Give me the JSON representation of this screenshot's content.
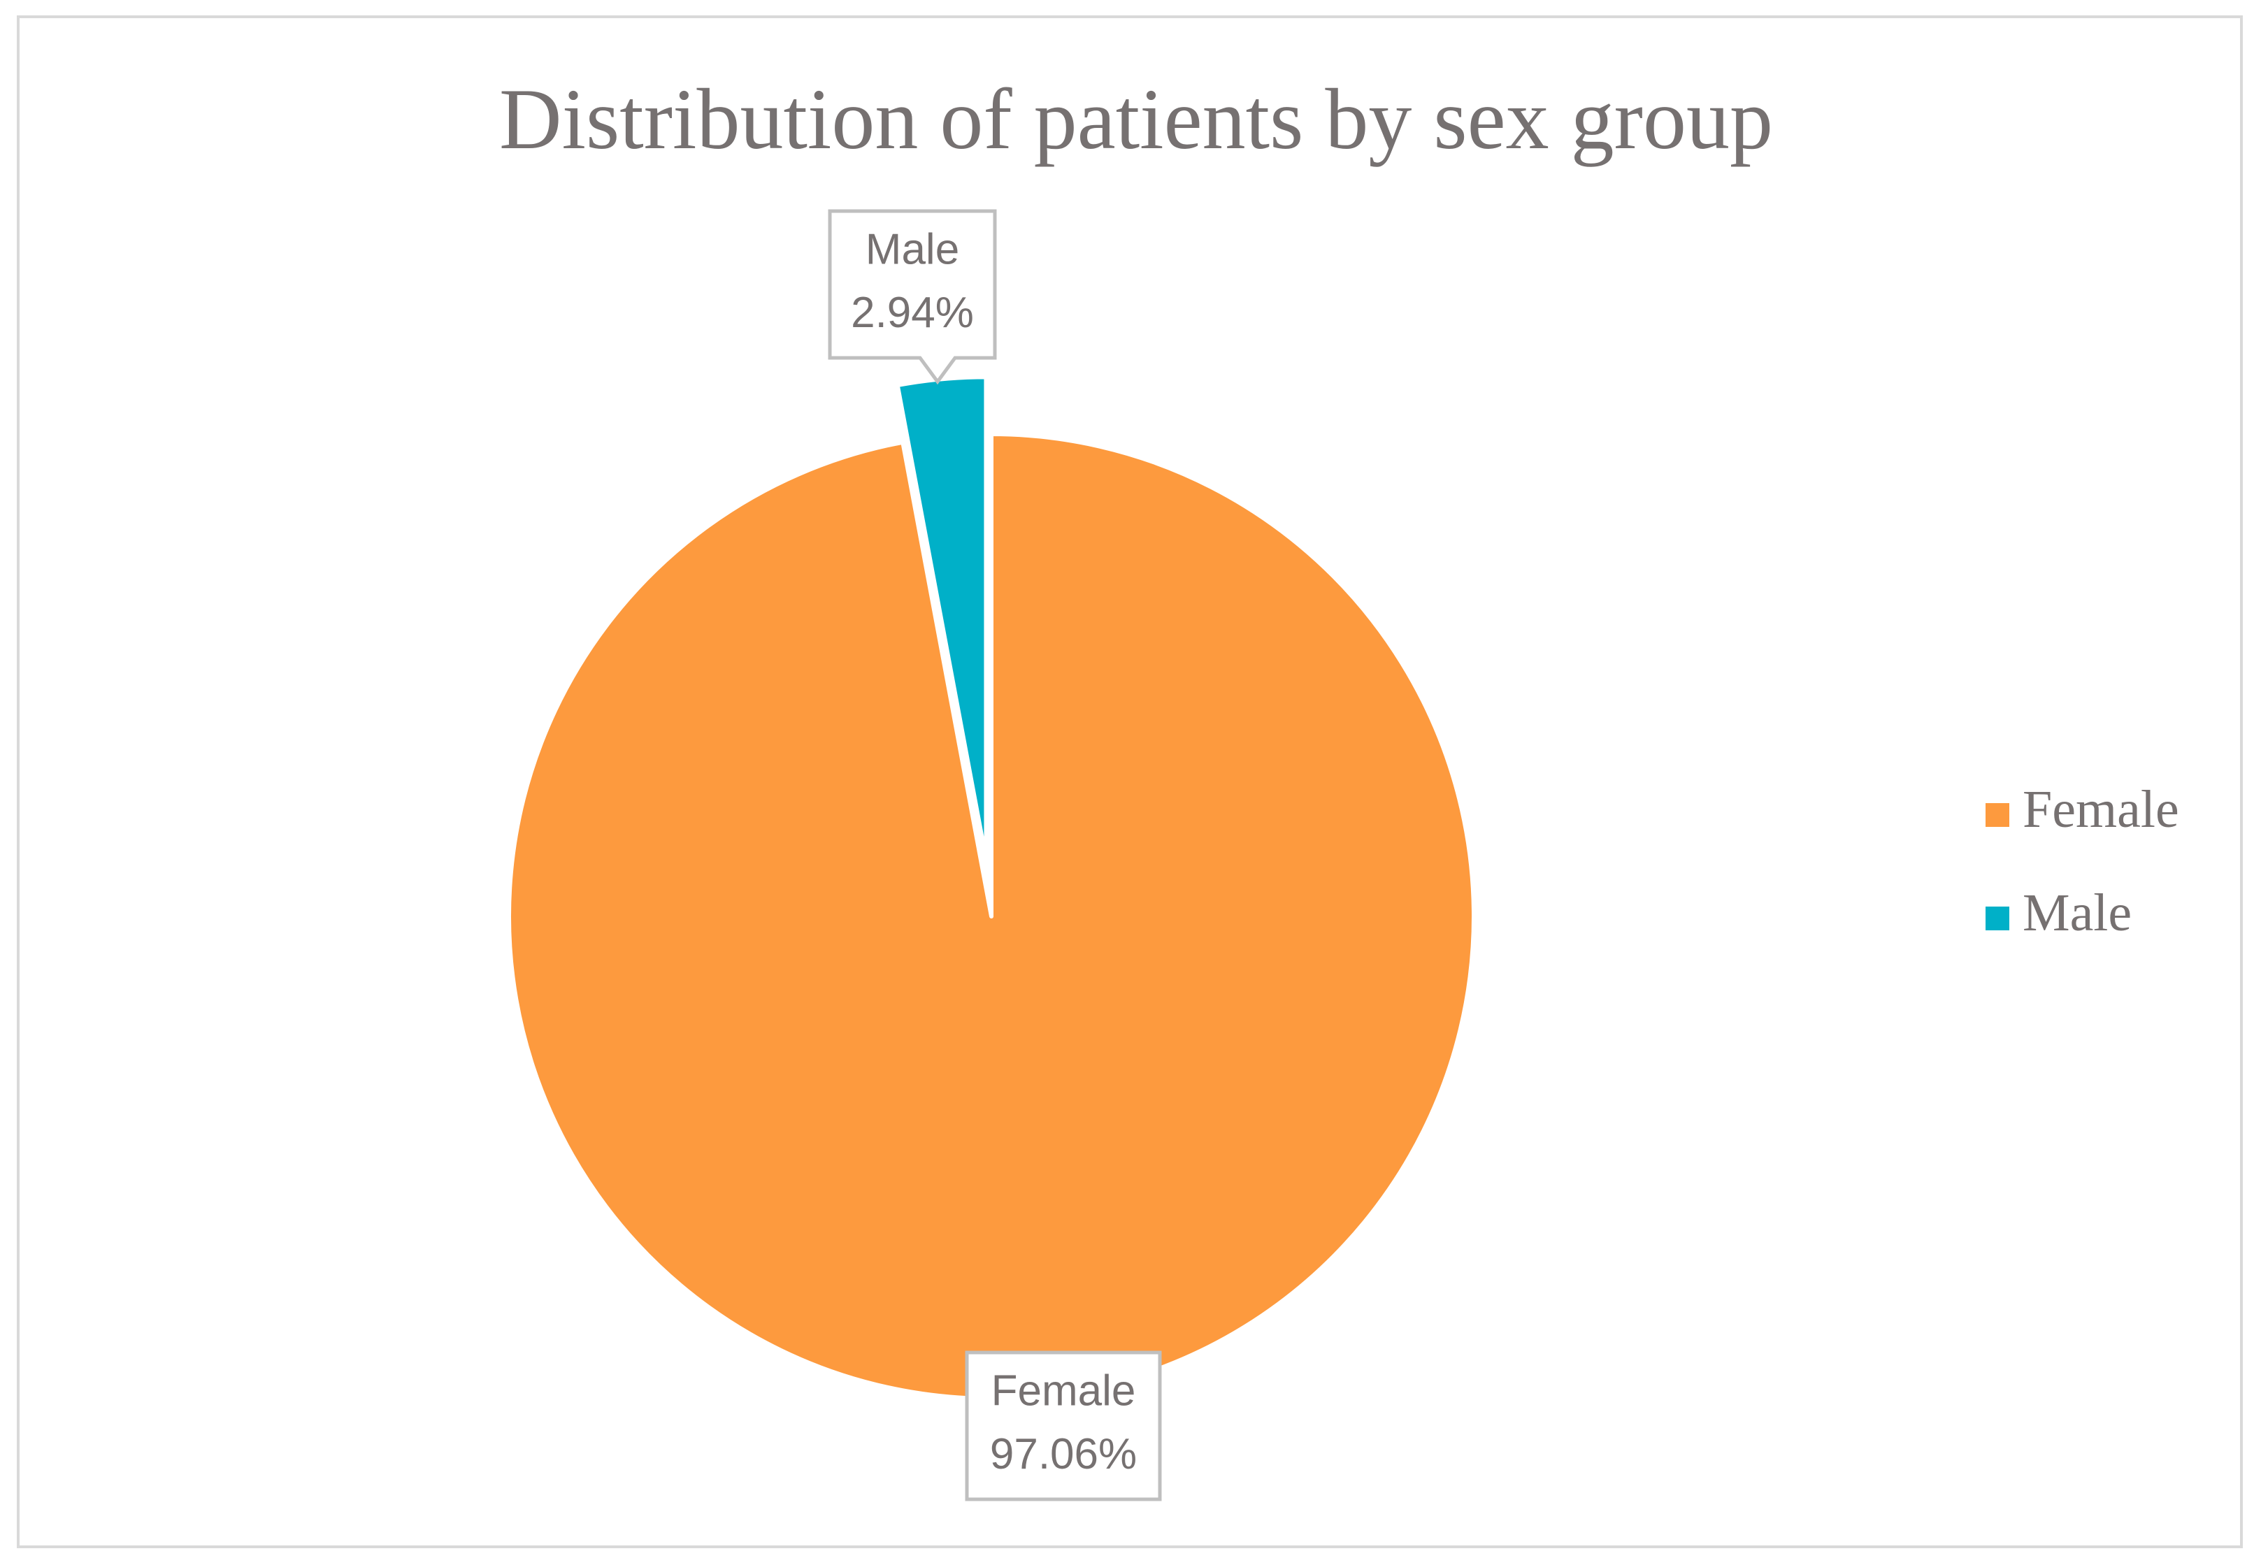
{
  "chart_data": {
    "type": "pie",
    "title": "Distribution of patients by sex group",
    "categories": [
      "Female",
      "Male"
    ],
    "values": [
      97.06,
      2.94
    ],
    "data_labels": [
      {
        "category": "Female",
        "value": "97.06%"
      },
      {
        "category": "Male",
        "value": "2.94%"
      }
    ],
    "colors": [
      "#fd9a3e",
      "#00b0c8"
    ],
    "exploded": [
      "Male"
    ],
    "legend": {
      "position": "right",
      "entries": [
        "Female",
        "Male"
      ]
    }
  },
  "colors": {
    "text": "#767171",
    "frame": "#d9d9d9",
    "label_border": "#bfbfbf",
    "background": "#ffffff"
  }
}
